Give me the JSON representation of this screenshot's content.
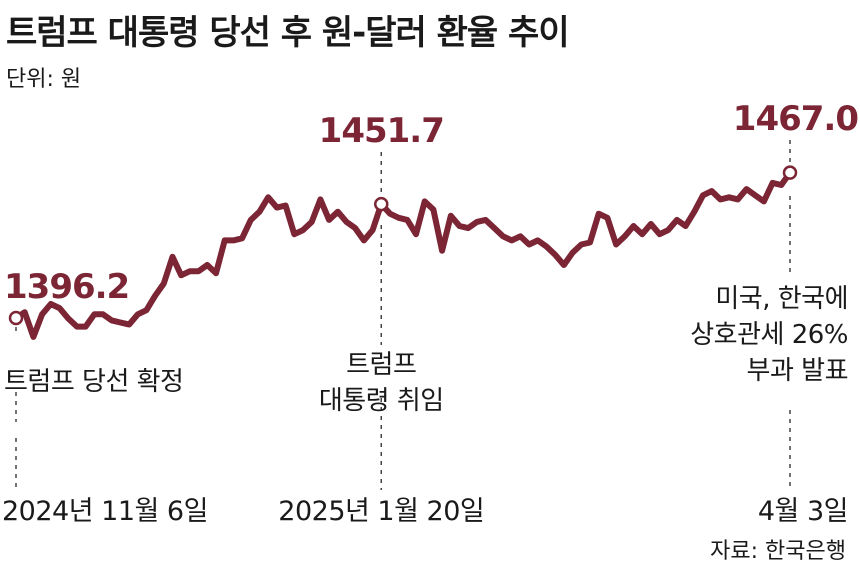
{
  "header": {
    "title": "트럼프 대통령 당선 후 원-달러 환율 추이",
    "unit": "단위: 원"
  },
  "source": "자료: 한국은행",
  "colors": {
    "line": "#7b2535",
    "value_text": "#7b2535",
    "text": "#1a1a1a"
  },
  "chart_data": {
    "type": "line",
    "title": "트럼프 대통령 당선 후 원-달러 환율 추이",
    "unit": "단위: 원",
    "ylim": [
      1365,
      1480
    ],
    "grid": false,
    "legend": "none",
    "series": [
      {
        "values": [
          1396.2,
          1399,
          1387,
          1398,
          1403,
          1401,
          1396,
          1392,
          1392,
          1398,
          1398,
          1395,
          1394,
          1393,
          1398,
          1400,
          1407,
          1413,
          1426,
          1417,
          1419,
          1419,
          1422,
          1418,
          1434,
          1434,
          1435,
          1444,
          1448,
          1455,
          1450,
          1451,
          1437,
          1439,
          1443,
          1454,
          1444,
          1448,
          1443,
          1440,
          1434,
          1439,
          1451.7,
          1447,
          1445,
          1444,
          1437,
          1453,
          1449,
          1429,
          1446,
          1441,
          1440,
          1443,
          1444,
          1440,
          1436,
          1434,
          1436,
          1432,
          1434,
          1431,
          1427,
          1422,
          1428,
          1432,
          1433,
          1447,
          1445,
          1432,
          1436,
          1441,
          1437,
          1442,
          1437,
          1439,
          1444,
          1441,
          1448,
          1456,
          1458,
          1454,
          1455,
          1454,
          1459,
          1456,
          1453,
          1462,
          1461,
          1467.0
        ]
      }
    ],
    "annotations": [
      {
        "index": 0,
        "value_label": "1396.2",
        "text_lines": [
          "트럼프 당선 확정"
        ],
        "date_label": "2024년 11월 6일"
      },
      {
        "index": 42,
        "value_label": "1451.7",
        "text_lines": [
          "트럼프",
          "대통령 취임"
        ],
        "date_label": "2025년 1월 20일"
      },
      {
        "index": 89,
        "value_label": "1467.0",
        "text_lines": [
          "미국, 한국에",
          "상호관세 26%",
          "부과 발표"
        ],
        "date_label": "4월 3일"
      }
    ]
  }
}
